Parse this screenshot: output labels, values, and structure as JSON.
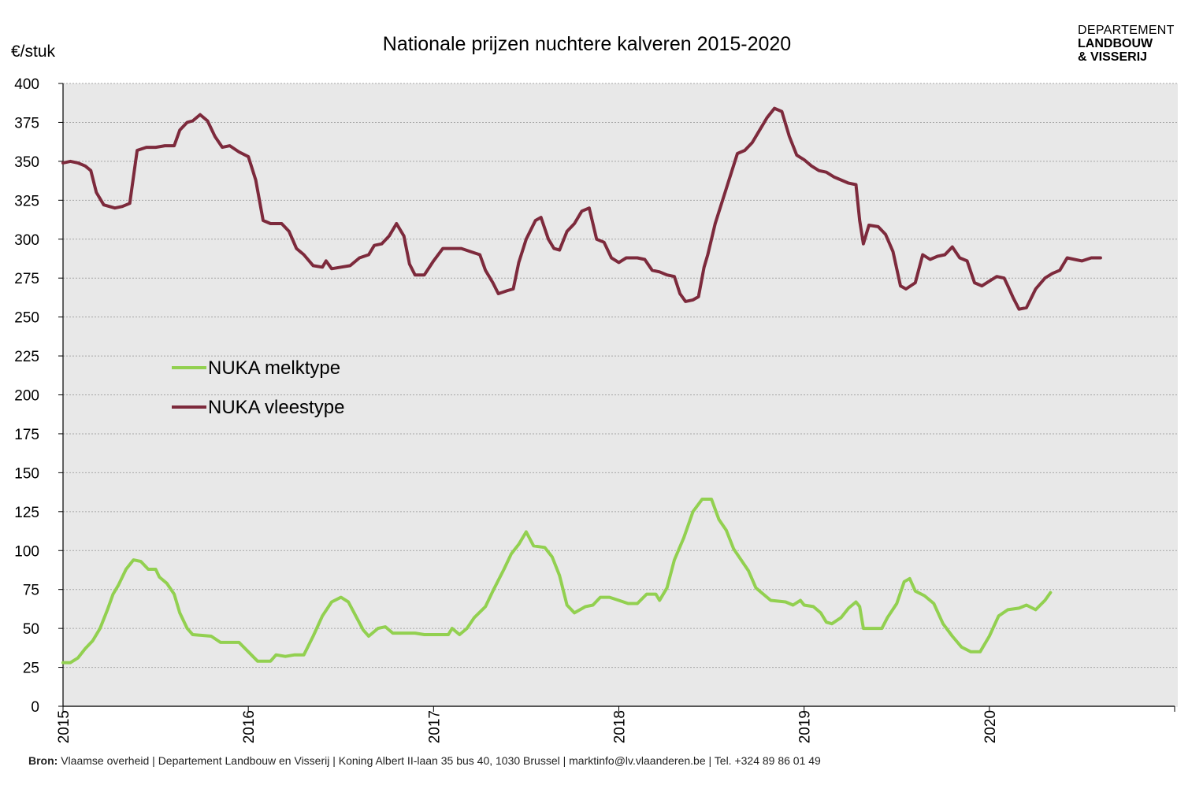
{
  "chart_data": {
    "type": "line",
    "title": "Nationale prijzen nuchtere kalveren 2015-2020",
    "ylabel": "€/stuk",
    "xlabel": "",
    "ylim": [
      0,
      400
    ],
    "xlim": [
      2015.0,
      2021.0
    ],
    "y_ticks": [
      "0",
      "25",
      "50",
      "75",
      "100",
      "125",
      "150",
      "175",
      "200",
      "225",
      "250",
      "275",
      "300",
      "325",
      "350",
      "375",
      "400"
    ],
    "x_ticks": [
      "2015",
      "2016",
      "2017",
      "2018",
      "2019",
      "2020"
    ],
    "grid": "horizontal dotted",
    "background": "#e8e8e8",
    "legend_position": "left-middle",
    "series": [
      {
        "name": "NUKA melktype",
        "color": "#92d050",
        "points": [
          [
            2015.0,
            28
          ],
          [
            2015.04,
            28
          ],
          [
            2015.08,
            31
          ],
          [
            2015.12,
            37
          ],
          [
            2015.16,
            42
          ],
          [
            2015.2,
            50
          ],
          [
            2015.24,
            62
          ],
          [
            2015.27,
            72
          ],
          [
            2015.3,
            78
          ],
          [
            2015.34,
            88
          ],
          [
            2015.38,
            94
          ],
          [
            2015.42,
            93
          ],
          [
            2015.46,
            88
          ],
          [
            2015.5,
            88
          ],
          [
            2015.52,
            83
          ],
          [
            2015.56,
            79
          ],
          [
            2015.6,
            72
          ],
          [
            2015.63,
            60
          ],
          [
            2015.67,
            50
          ],
          [
            2015.7,
            46
          ],
          [
            2015.8,
            45
          ],
          [
            2015.85,
            41
          ],
          [
            2015.95,
            41
          ],
          [
            2016.0,
            35
          ],
          [
            2016.05,
            29
          ],
          [
            2016.12,
            29
          ],
          [
            2016.15,
            33
          ],
          [
            2016.2,
            32
          ],
          [
            2016.25,
            33
          ],
          [
            2016.3,
            33
          ],
          [
            2016.35,
            45
          ],
          [
            2016.4,
            58
          ],
          [
            2016.45,
            67
          ],
          [
            2016.5,
            70
          ],
          [
            2016.54,
            67
          ],
          [
            2016.58,
            58
          ],
          [
            2016.62,
            49
          ],
          [
            2016.65,
            45
          ],
          [
            2016.7,
            50
          ],
          [
            2016.74,
            51
          ],
          [
            2016.78,
            47
          ],
          [
            2016.9,
            47
          ],
          [
            2016.95,
            46
          ],
          [
            2017.08,
            46
          ],
          [
            2017.1,
            50
          ],
          [
            2017.14,
            46
          ],
          [
            2017.18,
            50
          ],
          [
            2017.22,
            57
          ],
          [
            2017.28,
            64
          ],
          [
            2017.32,
            74
          ],
          [
            2017.38,
            88
          ],
          [
            2017.42,
            98
          ],
          [
            2017.46,
            104
          ],
          [
            2017.5,
            112
          ],
          [
            2017.54,
            103
          ],
          [
            2017.6,
            102
          ],
          [
            2017.64,
            96
          ],
          [
            2017.68,
            84
          ],
          [
            2017.72,
            65
          ],
          [
            2017.76,
            60
          ],
          [
            2017.82,
            64
          ],
          [
            2017.86,
            65
          ],
          [
            2017.9,
            70
          ],
          [
            2017.95,
            70
          ],
          [
            2018.0,
            68
          ],
          [
            2018.05,
            66
          ],
          [
            2018.1,
            66
          ],
          [
            2018.15,
            72
          ],
          [
            2018.2,
            72
          ],
          [
            2018.22,
            68
          ],
          [
            2018.26,
            76
          ],
          [
            2018.3,
            94
          ],
          [
            2018.35,
            108
          ],
          [
            2018.4,
            125
          ],
          [
            2018.45,
            133
          ],
          [
            2018.5,
            133
          ],
          [
            2018.54,
            120
          ],
          [
            2018.58,
            113
          ],
          [
            2018.62,
            101
          ],
          [
            2018.66,
            94
          ],
          [
            2018.7,
            87
          ],
          [
            2018.74,
            76
          ],
          [
            2018.78,
            72
          ],
          [
            2018.82,
            68
          ],
          [
            2018.9,
            67
          ],
          [
            2018.94,
            65
          ],
          [
            2018.98,
            68
          ],
          [
            2019.0,
            65
          ],
          [
            2019.05,
            64
          ],
          [
            2019.09,
            60
          ],
          [
            2019.12,
            54
          ],
          [
            2019.15,
            53
          ],
          [
            2019.2,
            57
          ],
          [
            2019.24,
            63
          ],
          [
            2019.28,
            67
          ],
          [
            2019.3,
            64
          ],
          [
            2019.32,
            50
          ],
          [
            2019.42,
            50
          ],
          [
            2019.45,
            57
          ],
          [
            2019.5,
            66
          ],
          [
            2019.54,
            80
          ],
          [
            2019.57,
            82
          ],
          [
            2019.6,
            74
          ],
          [
            2019.65,
            71
          ],
          [
            2019.7,
            66
          ],
          [
            2019.75,
            53
          ],
          [
            2019.8,
            45
          ],
          [
            2019.85,
            38
          ],
          [
            2019.9,
            35
          ],
          [
            2019.95,
            35
          ],
          [
            2020.0,
            45
          ],
          [
            2020.05,
            58
          ],
          [
            2020.1,
            62
          ],
          [
            2020.16,
            63
          ],
          [
            2020.2,
            65
          ],
          [
            2020.25,
            62
          ],
          [
            2020.3,
            68
          ],
          [
            2020.33,
            73
          ]
        ]
      },
      {
        "name": "NUKA vleestype",
        "color": "#7d2a3c",
        "points": [
          [
            2015.0,
            349
          ],
          [
            2015.04,
            350
          ],
          [
            2015.08,
            349
          ],
          [
            2015.12,
            347
          ],
          [
            2015.15,
            344
          ],
          [
            2015.18,
            330
          ],
          [
            2015.22,
            322
          ],
          [
            2015.28,
            320
          ],
          [
            2015.32,
            321
          ],
          [
            2015.36,
            323
          ],
          [
            2015.4,
            357
          ],
          [
            2015.45,
            359
          ],
          [
            2015.5,
            359
          ],
          [
            2015.55,
            360
          ],
          [
            2015.6,
            360
          ],
          [
            2015.63,
            370
          ],
          [
            2015.67,
            375
          ],
          [
            2015.7,
            376
          ],
          [
            2015.74,
            380
          ],
          [
            2015.78,
            376
          ],
          [
            2015.82,
            366
          ],
          [
            2015.86,
            359
          ],
          [
            2015.9,
            360
          ],
          [
            2015.95,
            356
          ],
          [
            2016.0,
            353
          ],
          [
            2016.04,
            338
          ],
          [
            2016.08,
            312
          ],
          [
            2016.12,
            310
          ],
          [
            2016.18,
            310
          ],
          [
            2016.22,
            305
          ],
          [
            2016.26,
            294
          ],
          [
            2016.3,
            290
          ],
          [
            2016.35,
            283
          ],
          [
            2016.4,
            282
          ],
          [
            2016.42,
            286
          ],
          [
            2016.45,
            281
          ],
          [
            2016.5,
            282
          ],
          [
            2016.55,
            283
          ],
          [
            2016.6,
            288
          ],
          [
            2016.65,
            290
          ],
          [
            2016.68,
            296
          ],
          [
            2016.72,
            297
          ],
          [
            2016.76,
            302
          ],
          [
            2016.8,
            310
          ],
          [
            2016.84,
            302
          ],
          [
            2016.87,
            284
          ],
          [
            2016.9,
            277
          ],
          [
            2016.95,
            277
          ],
          [
            2017.0,
            286
          ],
          [
            2017.05,
            294
          ],
          [
            2017.1,
            294
          ],
          [
            2017.15,
            294
          ],
          [
            2017.2,
            292
          ],
          [
            2017.25,
            290
          ],
          [
            2017.28,
            280
          ],
          [
            2017.32,
            272
          ],
          [
            2017.35,
            265
          ],
          [
            2017.4,
            267
          ],
          [
            2017.43,
            268
          ],
          [
            2017.46,
            285
          ],
          [
            2017.5,
            300
          ],
          [
            2017.55,
            312
          ],
          [
            2017.58,
            314
          ],
          [
            2017.62,
            300
          ],
          [
            2017.65,
            294
          ],
          [
            2017.68,
            293
          ],
          [
            2017.72,
            305
          ],
          [
            2017.76,
            310
          ],
          [
            2017.8,
            318
          ],
          [
            2017.84,
            320
          ],
          [
            2017.88,
            300
          ],
          [
            2017.92,
            298
          ],
          [
            2017.96,
            288
          ],
          [
            2018.0,
            285
          ],
          [
            2018.04,
            288
          ],
          [
            2018.1,
            288
          ],
          [
            2018.14,
            287
          ],
          [
            2018.18,
            280
          ],
          [
            2018.22,
            279
          ],
          [
            2018.26,
            277
          ],
          [
            2018.3,
            276
          ],
          [
            2018.33,
            265
          ],
          [
            2018.36,
            260
          ],
          [
            2018.4,
            261
          ],
          [
            2018.43,
            263
          ],
          [
            2018.46,
            282
          ],
          [
            2018.48,
            290
          ],
          [
            2018.52,
            310
          ],
          [
            2018.56,
            325
          ],
          [
            2018.6,
            340
          ],
          [
            2018.64,
            355
          ],
          [
            2018.68,
            357
          ],
          [
            2018.72,
            362
          ],
          [
            2018.76,
            370
          ],
          [
            2018.8,
            378
          ],
          [
            2018.84,
            384
          ],
          [
            2018.88,
            382
          ],
          [
            2018.92,
            366
          ],
          [
            2018.96,
            354
          ],
          [
            2019.0,
            351
          ],
          [
            2019.04,
            347
          ],
          [
            2019.08,
            344
          ],
          [
            2019.12,
            343
          ],
          [
            2019.16,
            340
          ],
          [
            2019.2,
            338
          ],
          [
            2019.24,
            336
          ],
          [
            2019.28,
            335
          ],
          [
            2019.3,
            312
          ],
          [
            2019.32,
            297
          ],
          [
            2019.35,
            309
          ],
          [
            2019.4,
            308
          ],
          [
            2019.44,
            303
          ],
          [
            2019.48,
            292
          ],
          [
            2019.52,
            270
          ],
          [
            2019.55,
            268
          ],
          [
            2019.6,
            272
          ],
          [
            2019.64,
            290
          ],
          [
            2019.68,
            287
          ],
          [
            2019.72,
            289
          ],
          [
            2019.76,
            290
          ],
          [
            2019.8,
            295
          ],
          [
            2019.84,
            288
          ],
          [
            2019.88,
            286
          ],
          [
            2019.92,
            272
          ],
          [
            2019.96,
            270
          ],
          [
            2020.0,
            273
          ],
          [
            2020.04,
            276
          ],
          [
            2020.08,
            275
          ],
          [
            2020.1,
            270
          ],
          [
            2020.13,
            262
          ],
          [
            2020.16,
            255
          ],
          [
            2020.2,
            256
          ],
          [
            2020.25,
            268
          ],
          [
            2020.3,
            275
          ],
          [
            2020.34,
            278
          ],
          [
            2020.38,
            280
          ],
          [
            2020.42,
            288
          ],
          [
            2020.46,
            287
          ],
          [
            2020.5,
            286
          ],
          [
            2020.55,
            288
          ],
          [
            2020.6,
            288
          ]
        ]
      }
    ]
  },
  "logo": {
    "line1": "DEPARTEMENT",
    "line2": "LANDBOUW",
    "line3": "& VISSERIJ"
  },
  "source": {
    "prefix": "Bron:",
    "text": " Vlaamse overheid | Departement Landbouw en Visserij | Koning Albert II-laan 35 bus 40, 1030 Brussel | marktinfo@lv.vlaanderen.be | Tel. +324 89 86 01 49"
  }
}
